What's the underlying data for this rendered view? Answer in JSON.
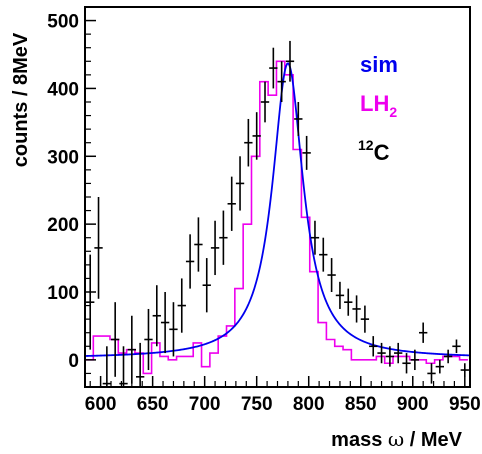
{
  "chart_data": {
    "type": "line",
    "xlabel_text": "mass ",
    "xlabel_symbol": "ω",
    "xlabel_unit": " / MeV",
    "ylabel": "counts / 8MeV",
    "xlim": [
      585,
      955
    ],
    "ylim": [
      -40,
      520
    ],
    "xticks": [
      600,
      650,
      700,
      750,
      800,
      850,
      900,
      950
    ],
    "yticks": [
      0,
      100,
      200,
      300,
      400,
      500
    ],
    "grid": false,
    "legend_position": "top-right",
    "legend": [
      {
        "key": "sim",
        "label": "sim",
        "sub": "",
        "sup": "",
        "color": "#0000ee"
      },
      {
        "key": "lh2",
        "label": "LH",
        "sub": "2",
        "sup": "",
        "color": "#ee00ee"
      },
      {
        "key": "c12",
        "label": "C",
        "sub": "",
        "sup": "12",
        "color": "#000000"
      }
    ],
    "series": [
      {
        "name": "sim",
        "kind": "curve",
        "color": "#0000ee",
        "peak": 780,
        "width": 18,
        "amplitude": 435,
        "baseline": 2,
        "x_range": [
          585,
          955
        ]
      },
      {
        "name": "LH2",
        "kind": "step",
        "color": "#ee00ee",
        "bin_width": 8,
        "x": [
          589,
          597,
          605,
          613,
          621,
          629,
          637,
          645,
          653,
          661,
          669,
          677,
          685,
          693,
          701,
          709,
          717,
          725,
          733,
          741,
          749,
          757,
          765,
          773,
          781,
          789,
          797,
          805,
          813,
          821,
          829,
          837,
          845,
          853,
          861,
          869,
          877,
          885,
          893,
          901,
          909,
          917,
          925,
          933,
          941,
          949
        ],
        "y": [
          0,
          35,
          35,
          30,
          10,
          15,
          10,
          -20,
          25,
          5,
          0,
          5,
          5,
          25,
          -10,
          10,
          35,
          50,
          105,
          200,
          300,
          410,
          390,
          440,
          420,
          310,
          210,
          130,
          55,
          30,
          20,
          15,
          0,
          0,
          0,
          5,
          -5,
          5,
          5,
          0,
          0,
          -5,
          0,
          5,
          5,
          0
        ]
      },
      {
        "name": "12C",
        "kind": "errorbar",
        "color": "#000000",
        "x": [
          590,
          598,
          606,
          614,
          622,
          630,
          638,
          646,
          654,
          662,
          670,
          678,
          686,
          694,
          702,
          710,
          718,
          726,
          734,
          742,
          750,
          758,
          766,
          774,
          782,
          790,
          798,
          806,
          814,
          822,
          830,
          838,
          846,
          854,
          862,
          870,
          878,
          886,
          894,
          902,
          910,
          918,
          926,
          934,
          942,
          950
        ],
        "y": [
          85,
          165,
          -35,
          30,
          -35,
          15,
          -25,
          30,
          65,
          55,
          45,
          80,
          145,
          170,
          110,
          165,
          180,
          230,
          260,
          320,
          330,
          380,
          430,
          410,
          440,
          355,
          305,
          180,
          155,
          125,
          95,
          85,
          75,
          60,
          20,
          10,
          5,
          10,
          -5,
          0,
          40,
          -20,
          -10,
          5,
          20,
          -15
        ],
        "err": [
          70,
          75,
          55,
          55,
          55,
          50,
          50,
          45,
          45,
          45,
          40,
          40,
          40,
          40,
          40,
          40,
          40,
          40,
          40,
          35,
          35,
          30,
          30,
          30,
          30,
          25,
          25,
          25,
          25,
          25,
          20,
          20,
          20,
          20,
          15,
          15,
          15,
          15,
          15,
          15,
          15,
          15,
          10,
          10,
          10,
          10
        ]
      }
    ]
  }
}
